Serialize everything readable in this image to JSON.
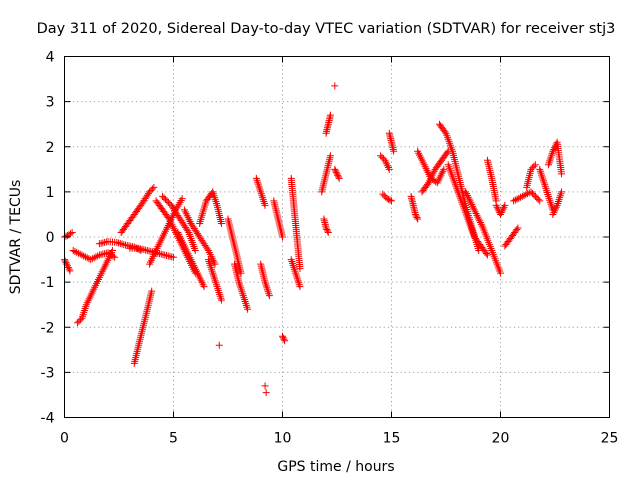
{
  "chart_data": {
    "type": "scatter",
    "title": "Day 311 of 2020, Sidereal Day-to-day VTEC variation (SDTVAR) for receiver stj3",
    "xlabel": "GPS time / hours",
    "ylabel": "SDTVAR / TECUs",
    "xlim": [
      0,
      25
    ],
    "ylim": [
      -4,
      4
    ],
    "x_ticks": [
      0,
      5,
      10,
      15,
      20,
      25
    ],
    "y_ticks": [
      -4,
      -3,
      -2,
      -1,
      0,
      1,
      2,
      3,
      4
    ],
    "grid": true,
    "marker": "+",
    "color": "#ff0000",
    "series": [
      {
        "name": "SDTVAR",
        "segments": [
          {
            "x": [
              0.0,
              0.2,
              0.35
            ],
            "y": [
              0.0,
              0.05,
              0.1
            ]
          },
          {
            "x": [
              0.0,
              0.1,
              0.25
            ],
            "y": [
              -0.5,
              -0.6,
              -0.75
            ]
          },
          {
            "x": [
              0.4,
              0.8,
              1.2,
              1.6,
              2.0,
              2.3
            ],
            "y": [
              -0.3,
              -0.4,
              -0.5,
              -0.4,
              -0.35,
              -0.45
            ]
          },
          {
            "x": [
              0.6,
              0.8,
              1.0,
              1.3,
              1.6,
              1.9,
              2.2
            ],
            "y": [
              -1.9,
              -1.8,
              -1.5,
              -1.2,
              -0.9,
              -0.6,
              -0.3
            ]
          },
          {
            "x": [
              1.6,
              2.0,
              2.4,
              2.8,
              3.2,
              3.5
            ],
            "y": [
              -0.15,
              -0.1,
              -0.12,
              -0.18,
              -0.22,
              -0.3
            ]
          },
          {
            "x": [
              3.2,
              3.4,
              3.6,
              3.8,
              4.0
            ],
            "y": [
              -2.8,
              -2.4,
              -2.0,
              -1.6,
              -1.2
            ]
          },
          {
            "x": [
              2.6,
              2.9,
              3.2,
              3.5,
              3.7,
              3.9,
              4.1
            ],
            "y": [
              0.1,
              0.3,
              0.5,
              0.7,
              0.85,
              1.0,
              1.1
            ]
          },
          {
            "x": [
              3.0,
              3.4,
              3.8,
              4.2,
              4.6,
              5.0
            ],
            "y": [
              -0.25,
              -0.25,
              -0.3,
              -0.35,
              -0.4,
              -0.45
            ]
          },
          {
            "x": [
              3.9,
              4.2,
              4.5,
              4.8,
              5.1,
              5.4
            ],
            "y": [
              -0.6,
              -0.3,
              0.0,
              0.3,
              0.6,
              0.85
            ]
          },
          {
            "x": [
              4.2,
              4.5,
              4.8,
              5.1,
              5.4,
              5.7,
              6.0
            ],
            "y": [
              0.8,
              0.6,
              0.4,
              0.1,
              -0.2,
              -0.5,
              -0.8
            ]
          },
          {
            "x": [
              4.5,
              4.9,
              5.3,
              5.7,
              6.0
            ],
            "y": [
              0.9,
              0.7,
              0.4,
              0.1,
              -0.3
            ]
          },
          {
            "x": [
              5.2,
              5.5,
              5.8,
              6.1,
              6.4
            ],
            "y": [
              0.1,
              -0.2,
              -0.5,
              -0.8,
              -1.1
            ]
          },
          {
            "x": [
              5.5,
              5.8,
              6.2,
              6.6,
              6.9
            ],
            "y": [
              0.6,
              0.3,
              0.0,
              -0.3,
              -0.6
            ]
          },
          {
            "x": [
              6.2,
              6.5,
              6.8,
              7.0,
              7.2
            ],
            "y": [
              0.3,
              0.8,
              1.0,
              0.7,
              0.3
            ]
          },
          {
            "x": [
              6.6,
              6.8,
              7.0,
              7.2
            ],
            "y": [
              -0.5,
              -0.8,
              -1.1,
              -1.4
            ]
          },
          {
            "x": [
              7.1
            ],
            "y": [
              -2.4
            ]
          },
          {
            "x": [
              7.5,
              7.7,
              7.9,
              8.1
            ],
            "y": [
              0.4,
              0.0,
              -0.4,
              -0.8
            ]
          },
          {
            "x": [
              7.8,
              8.0,
              8.2,
              8.4
            ],
            "y": [
              -0.6,
              -1.0,
              -1.3,
              -1.6
            ]
          },
          {
            "x": [
              8.8,
              9.0,
              9.2
            ],
            "y": [
              1.3,
              1.0,
              0.7
            ]
          },
          {
            "x": [
              9.0,
              9.2,
              9.4
            ],
            "y": [
              -0.6,
              -1.0,
              -1.3
            ]
          },
          {
            "x": [
              9.2
            ],
            "y": [
              -3.3
            ]
          },
          {
            "x": [
              9.25
            ],
            "y": [
              -3.45
            ]
          },
          {
            "x": [
              9.6,
              9.8,
              10.0
            ],
            "y": [
              0.8,
              0.4,
              0.0
            ]
          },
          {
            "x": [
              10.0,
              10.1
            ],
            "y": [
              -2.2,
              -2.3
            ]
          },
          {
            "x": [
              10.4,
              10.5,
              10.6,
              10.7,
              10.8
            ],
            "y": [
              1.3,
              0.8,
              0.3,
              -0.2,
              -0.7
            ]
          },
          {
            "x": [
              10.4,
              10.6,
              10.8
            ],
            "y": [
              -0.5,
              -0.8,
              -1.1
            ]
          },
          {
            "x": [
              11.8,
              12.0,
              12.2
            ],
            "y": [
              1.0,
              1.4,
              1.8
            ]
          },
          {
            "x": [
              11.9,
              12.0,
              12.1
            ],
            "y": [
              0.4,
              0.2,
              0.1
            ]
          },
          {
            "x": [
              12.0,
              12.1,
              12.2
            ],
            "y": [
              2.3,
              2.5,
              2.7
            ]
          },
          {
            "x": [
              12.4
            ],
            "y": [
              3.35
            ]
          },
          {
            "x": [
              12.4,
              12.5,
              12.6
            ],
            "y": [
              1.5,
              1.4,
              1.3
            ]
          },
          {
            "x": [
              14.5,
              14.7,
              14.9
            ],
            "y": [
              1.8,
              1.7,
              1.5
            ]
          },
          {
            "x": [
              14.6,
              14.8,
              15.0
            ],
            "y": [
              0.95,
              0.85,
              0.8
            ]
          },
          {
            "x": [
              14.9,
              15.0,
              15.1
            ],
            "y": [
              2.3,
              2.1,
              1.9
            ]
          },
          {
            "x": [
              15.9,
              16.0,
              16.1,
              16.2
            ],
            "y": [
              0.9,
              0.7,
              0.5,
              0.4
            ]
          },
          {
            "x": [
              16.2,
              16.5,
              16.8,
              17.1,
              17.4
            ],
            "y": [
              1.9,
              1.6,
              1.3,
              1.2,
              1.5
            ]
          },
          {
            "x": [
              16.4,
              16.7,
              17.0,
              17.3,
              17.6
            ],
            "y": [
              1.0,
              1.2,
              1.5,
              1.7,
              1.9
            ]
          },
          {
            "x": [
              17.2,
              17.5,
              17.8,
              18.1,
              18.4,
              18.7,
              19.0
            ],
            "y": [
              2.5,
              2.3,
              1.9,
              1.3,
              0.7,
              0.2,
              -0.3
            ]
          },
          {
            "x": [
              17.6,
              17.9,
              18.2,
              18.5,
              18.8,
              19.1,
              19.4
            ],
            "y": [
              1.6,
              1.2,
              0.8,
              0.4,
              0.0,
              -0.2,
              -0.4
            ]
          },
          {
            "x": [
              18.4,
              18.8,
              19.2,
              19.6,
              20.0
            ],
            "y": [
              1.0,
              0.6,
              0.2,
              -0.3,
              -0.8
            ]
          },
          {
            "x": [
              19.4,
              19.6,
              19.8
            ],
            "y": [
              1.7,
              1.3,
              0.8
            ]
          },
          {
            "x": [
              19.8,
              20.0,
              20.2
            ],
            "y": [
              0.7,
              0.5,
              0.7
            ]
          },
          {
            "x": [
              20.2,
              20.5,
              20.8
            ],
            "y": [
              -0.2,
              0.0,
              0.2
            ]
          },
          {
            "x": [
              20.6,
              21.0,
              21.4,
              21.8
            ],
            "y": [
              0.8,
              0.9,
              1.0,
              0.8
            ]
          },
          {
            "x": [
              21.2,
              21.4,
              21.6
            ],
            "y": [
              1.1,
              1.5,
              1.6
            ]
          },
          {
            "x": [
              21.8,
              22.0,
              22.2,
              22.4
            ],
            "y": [
              1.5,
              1.2,
              0.9,
              0.6
            ]
          },
          {
            "x": [
              22.2,
              22.4,
              22.6,
              22.8
            ],
            "y": [
              1.6,
              1.9,
              2.1,
              1.4
            ]
          },
          {
            "x": [
              22.4,
              22.6,
              22.8
            ],
            "y": [
              0.5,
              0.7,
              1.0
            ]
          }
        ]
      }
    ]
  }
}
